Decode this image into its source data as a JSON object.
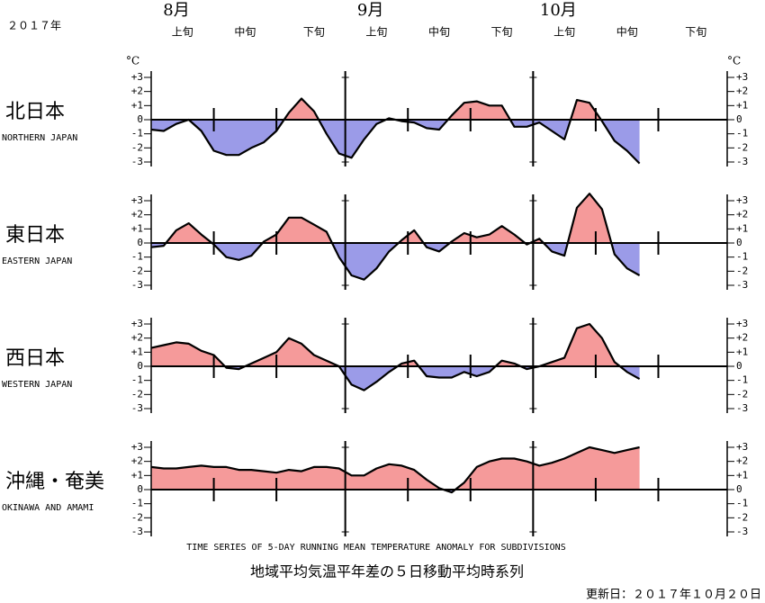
{
  "header": {
    "year": "２０１７年",
    "unit": "°C"
  },
  "x_axis": {
    "xlim": [
      0,
      92
    ],
    "months": [
      {
        "value": 0,
        "label": "8月"
      },
      {
        "value": 31,
        "label": "9月"
      },
      {
        "value": 61,
        "label": "10月"
      }
    ],
    "periods": [
      {
        "value": 5,
        "label": "上旬"
      },
      {
        "value": 15,
        "label": "中旬"
      },
      {
        "value": 26,
        "label": "下旬"
      },
      {
        "value": 36,
        "label": "上旬"
      },
      {
        "value": 46,
        "label": "中旬"
      },
      {
        "value": 56,
        "label": "下旬"
      },
      {
        "value": 66,
        "label": "上旬"
      },
      {
        "value": 76,
        "label": "中旬"
      },
      {
        "value": 87,
        "label": "下旬"
      }
    ],
    "minor_ticks": [
      10,
      20,
      41,
      51,
      71,
      81
    ]
  },
  "chart_data": [
    {
      "type": "area",
      "title": "北日本",
      "subtitle": "NORTHERN JAPAN",
      "positive_color": "#f59a9a",
      "negative_color": "#9b9be8",
      "ylim": [
        -3,
        3
      ],
      "yticks": [
        {
          "value": 3,
          "label": "+3"
        },
        {
          "value": 2,
          "label": "+2"
        },
        {
          "value": 1,
          "label": "+1"
        },
        0,
        -1,
        -2,
        -3
      ],
      "x": [
        0,
        2,
        4,
        6,
        8,
        10,
        12,
        14,
        16,
        18,
        20,
        22,
        24,
        26,
        28,
        30,
        32,
        34,
        36,
        38,
        40,
        42,
        44,
        46,
        48,
        50,
        52,
        54,
        56,
        58,
        60,
        62,
        64,
        66,
        68,
        70,
        72,
        74,
        76,
        78
      ],
      "values": [
        -0.7,
        -0.8,
        -0.3,
        0.0,
        -0.8,
        -2.2,
        -2.5,
        -2.5,
        -2.0,
        -1.6,
        -0.8,
        0.5,
        1.5,
        0.6,
        -1.0,
        -2.4,
        -2.7,
        -1.4,
        -0.3,
        0.1,
        -0.1,
        -0.2,
        -0.6,
        -0.7,
        0.3,
        1.2,
        1.3,
        1.0,
        1.0,
        -0.5,
        -0.5,
        -0.2,
        -0.8,
        -1.4,
        1.4,
        1.2,
        -0.1,
        -1.5,
        -2.2,
        -3.1
      ]
    },
    {
      "type": "area",
      "title": "東日本",
      "subtitle": "EASTERN JAPAN",
      "positive_color": "#f59a9a",
      "negative_color": "#9b9be8",
      "ylim": [
        -3,
        3
      ],
      "yticks": [
        {
          "value": 3,
          "label": "+3"
        },
        {
          "value": 2,
          "label": "+2"
        },
        {
          "value": 1,
          "label": "+1"
        },
        0,
        -1,
        -2,
        -3
      ],
      "x": [
        0,
        2,
        4,
        6,
        8,
        10,
        12,
        14,
        16,
        18,
        20,
        22,
        24,
        26,
        28,
        30,
        32,
        34,
        36,
        38,
        40,
        42,
        44,
        46,
        48,
        50,
        52,
        54,
        56,
        58,
        60,
        62,
        64,
        66,
        68,
        70,
        72,
        74,
        76,
        78
      ],
      "values": [
        -0.3,
        -0.2,
        0.9,
        1.4,
        0.6,
        -0.1,
        -1.0,
        -1.2,
        -0.9,
        0.1,
        0.6,
        1.8,
        1.8,
        1.3,
        0.8,
        -1.0,
        -2.3,
        -2.6,
        -1.8,
        -0.6,
        0.2,
        0.9,
        -0.3,
        -0.6,
        0.1,
        0.7,
        0.4,
        0.6,
        1.2,
        0.6,
        -0.1,
        0.3,
        -0.6,
        -0.9,
        2.5,
        3.5,
        2.4,
        -0.8,
        -1.8,
        -2.3
      ]
    },
    {
      "type": "area",
      "title": "西日本",
      "subtitle": "WESTERN JAPAN",
      "positive_color": "#f59a9a",
      "negative_color": "#9b9be8",
      "ylim": [
        -3,
        3
      ],
      "yticks": [
        {
          "value": 3,
          "label": "+3"
        },
        {
          "value": 2,
          "label": "+2"
        },
        {
          "value": 1,
          "label": "+1"
        },
        0,
        -1,
        -2,
        -3
      ],
      "x": [
        0,
        2,
        4,
        6,
        8,
        10,
        12,
        14,
        16,
        18,
        20,
        22,
        24,
        26,
        28,
        30,
        32,
        34,
        36,
        38,
        40,
        42,
        44,
        46,
        48,
        50,
        52,
        54,
        56,
        58,
        60,
        62,
        64,
        66,
        68,
        70,
        72,
        74,
        76,
        78
      ],
      "values": [
        1.3,
        1.5,
        1.7,
        1.6,
        1.1,
        0.8,
        -0.1,
        -0.2,
        0.2,
        0.6,
        1.0,
        2.0,
        1.6,
        0.8,
        0.4,
        0.0,
        -1.3,
        -1.7,
        -1.1,
        -0.4,
        0.2,
        0.4,
        -0.7,
        -0.8,
        -0.8,
        -0.4,
        -0.7,
        -0.4,
        0.4,
        0.2,
        -0.2,
        0.0,
        0.3,
        0.6,
        2.7,
        3.0,
        2.0,
        0.3,
        -0.4,
        -0.9
      ]
    },
    {
      "type": "area",
      "title": "沖縄・奄美",
      "subtitle": "OKINAWA AND AMAMI",
      "positive_color": "#f59a9a",
      "negative_color": "#9b9be8",
      "ylim": [
        -3,
        3
      ],
      "yticks": [
        {
          "value": 3,
          "label": "+3"
        },
        {
          "value": 2,
          "label": "+2"
        },
        {
          "value": 1,
          "label": "+1"
        },
        0,
        -1,
        -2,
        -3
      ],
      "x": [
        0,
        2,
        4,
        6,
        8,
        10,
        12,
        14,
        16,
        18,
        20,
        22,
        24,
        26,
        28,
        30,
        32,
        34,
        36,
        38,
        40,
        42,
        44,
        46,
        48,
        50,
        52,
        54,
        56,
        58,
        60,
        62,
        64,
        66,
        68,
        70,
        72,
        74,
        76,
        78
      ],
      "values": [
        1.6,
        1.5,
        1.5,
        1.6,
        1.7,
        1.6,
        1.6,
        1.4,
        1.4,
        1.3,
        1.2,
        1.4,
        1.3,
        1.6,
        1.6,
        1.5,
        1.0,
        1.0,
        1.5,
        1.8,
        1.7,
        1.4,
        0.7,
        0.1,
        -0.2,
        0.5,
        1.6,
        2.0,
        2.2,
        2.2,
        2.0,
        1.7,
        1.9,
        2.2,
        2.6,
        3.0,
        2.8,
        2.6,
        2.8,
        3.0
      ]
    }
  ],
  "footer": {
    "caption_en": "TIME SERIES OF 5-DAY RUNNING MEAN TEMPERATURE ANOMALY FOR SUBDIVISIONS",
    "caption_ja": "地域平均気温平年差の５日移動平均時系列",
    "updated": "更新日：２０１７年１０月２０日"
  }
}
